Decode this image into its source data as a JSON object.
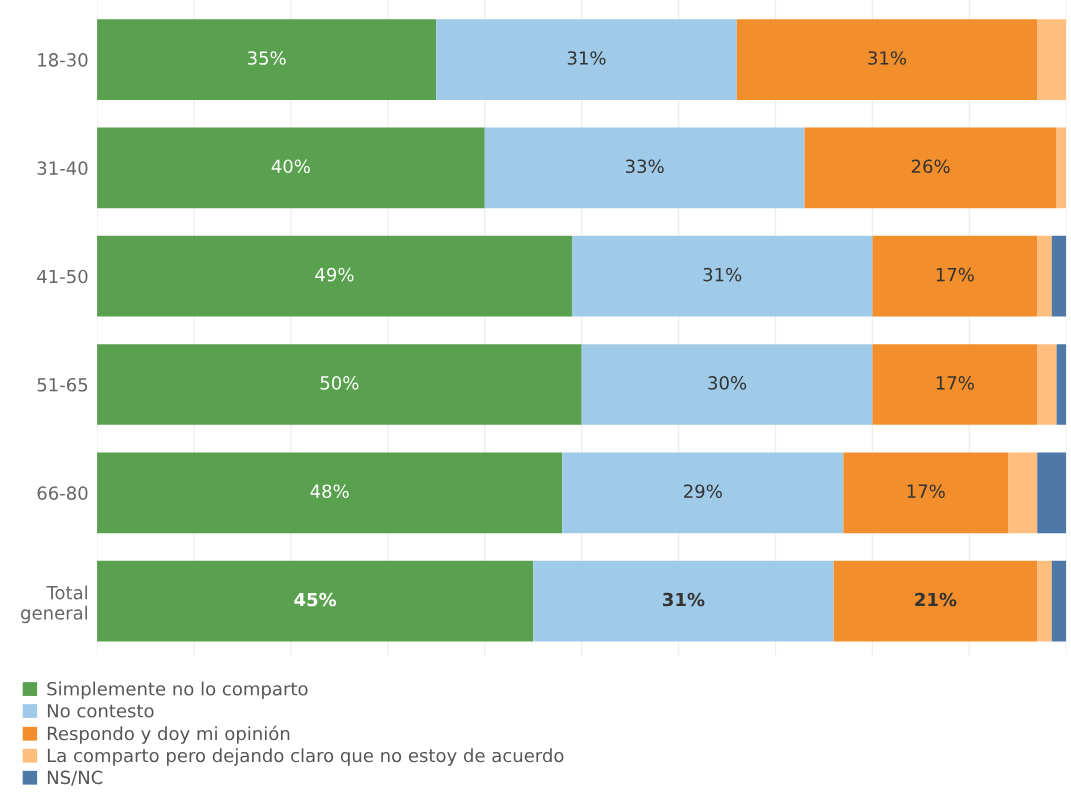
{
  "chart_data": {
    "type": "bar",
    "orientation": "horizontal",
    "stacked": true,
    "categories": [
      "18-30",
      "31-40",
      "41-50",
      "51-65",
      "66-80",
      "Total\ngeneral"
    ],
    "series": [
      {
        "name": "Simplemente no lo comparto",
        "color": "#59a14f",
        "values": [
          35,
          40,
          49,
          50,
          48,
          45
        ],
        "value_labels": [
          "35%",
          "40%",
          "49%",
          "50%",
          "48%",
          "45%"
        ]
      },
      {
        "name": "No contesto",
        "color": "#a0cbe8",
        "values": [
          31,
          33,
          31,
          30,
          29,
          31
        ],
        "value_labels": [
          "31%",
          "33%",
          "31%",
          "30%",
          "29%",
          "31%"
        ]
      },
      {
        "name": "Respondo y doy mi opinión",
        "color": "#f28e2b",
        "values": [
          31,
          26,
          17,
          17,
          17,
          21
        ],
        "value_labels": [
          "31%",
          "26%",
          "17%",
          "17%",
          "17%",
          "21%"
        ]
      },
      {
        "name": "La comparto pero dejando claro que no estoy de acuerdo",
        "color": "#ffbe7d",
        "values": [
          3,
          1,
          1.5,
          2,
          3,
          1.5
        ]
      },
      {
        "name": "NS/NC",
        "color": "#4e79a7",
        "values": [
          0,
          0,
          1.5,
          1,
          3,
          1.5
        ]
      }
    ],
    "xlim": [
      0,
      100
    ],
    "xticks": [
      {
        "value": 0,
        "label": null
      },
      {
        "value": 10,
        "label": null
      },
      {
        "value": 20,
        "label": null
      },
      {
        "value": 30,
        "label": null
      },
      {
        "value": 40,
        "label": null
      },
      {
        "value": 50,
        "label": null
      },
      {
        "value": 60,
        "label": null
      },
      {
        "value": 70,
        "label": null
      },
      {
        "value": 80,
        "label": null
      },
      {
        "value": 90,
        "label": null
      },
      {
        "value": 100,
        "label": null
      }
    ],
    "tick_labels": "y",
    "grid": "x",
    "legend": "bottom left"
  }
}
